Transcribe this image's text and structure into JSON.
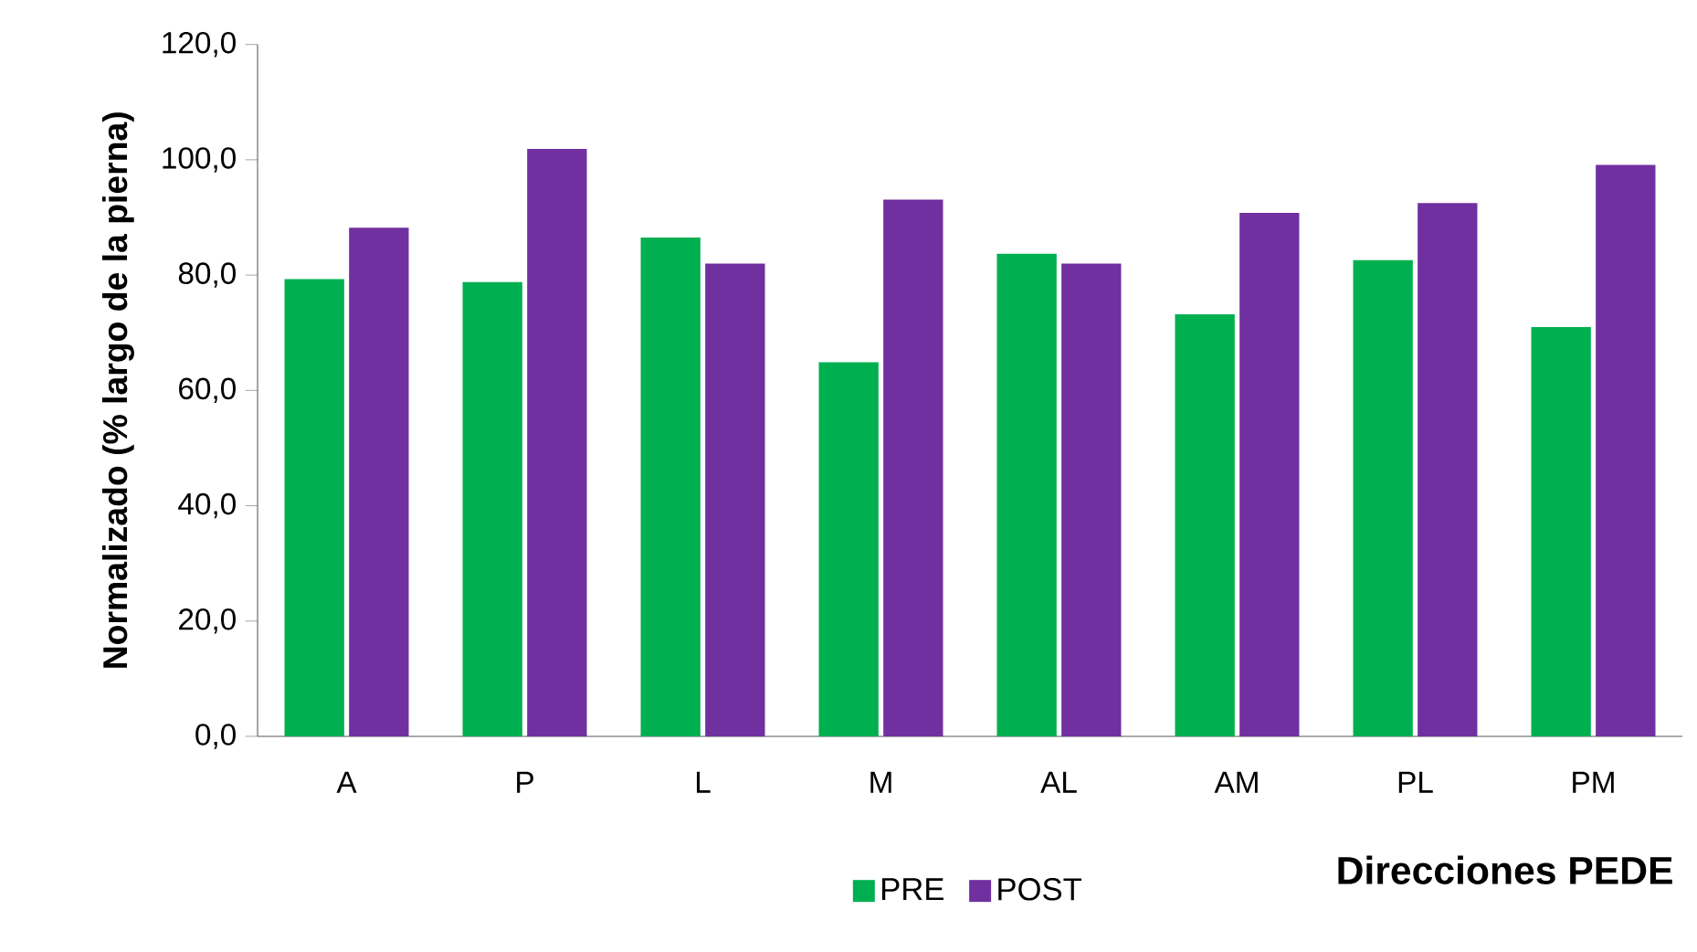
{
  "chart_data": {
    "type": "bar",
    "xlabel": "Direcciones PEDE",
    "ylabel": "Normalizado (% largo de la pierna)",
    "categories": [
      "A",
      "P",
      "L",
      "M",
      "AL",
      "AM",
      "PL",
      "PM"
    ],
    "series": [
      {
        "name": "PRE",
        "color": "#00b050",
        "values": [
          79.3,
          78.8,
          86.5,
          64.9,
          83.7,
          73.2,
          82.6,
          71.0
        ]
      },
      {
        "name": "POST",
        "color": "#7030a0",
        "values": [
          88.2,
          101.9,
          82.0,
          93.1,
          82.0,
          90.8,
          92.5,
          99.1
        ]
      }
    ],
    "ylim": [
      0,
      120
    ],
    "yticks": [
      {
        "value": 0,
        "label": "0,0"
      },
      {
        "value": 20,
        "label": "20,0"
      },
      {
        "value": 40,
        "label": "40,0"
      },
      {
        "value": 60,
        "label": "60,0"
      },
      {
        "value": 80,
        "label": "80,0"
      },
      {
        "value": 100,
        "label": "100,0"
      },
      {
        "value": 120,
        "label": "120,0"
      }
    ],
    "grid": false,
    "legend": "bottom"
  }
}
